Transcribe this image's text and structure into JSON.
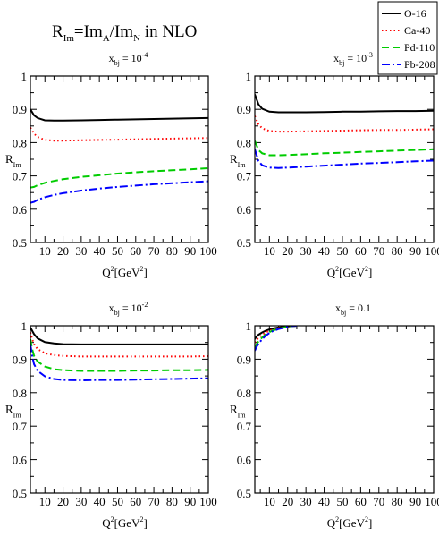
{
  "figure": {
    "title_main": "R",
    "title_main_sub": "Im",
    "title_eq": "=Im",
    "title_A": "A",
    "title_slash": "/Im",
    "title_N": "N",
    "title_tail": " in NLO"
  },
  "legend": {
    "entries": [
      {
        "label": "O-16",
        "color": "#000000",
        "dash": "solid"
      },
      {
        "label": "Ca-40",
        "color": "#ff0000",
        "dash": "dotted"
      },
      {
        "label": "Pd-110",
        "color": "#00cc00",
        "dash": "dashed"
      },
      {
        "label": "Pb-208",
        "color": "#0000ff",
        "dash": "dashdot"
      }
    ]
  },
  "chart_data": [
    {
      "type": "line",
      "panel_title": "x_bj = 10^-4",
      "panel_title_base": "x",
      "panel_title_sub": "bj",
      "panel_title_eq": " = 10",
      "panel_title_sup": "-4",
      "xlabel": "Q²[GeV²]",
      "ylabel": "R_Im",
      "xlim": [
        2,
        100
      ],
      "ylim": [
        0.5,
        1.0
      ],
      "xticks": [
        10,
        20,
        30,
        40,
        50,
        60,
        70,
        80,
        90,
        100
      ],
      "yticks": [
        0.5,
        0.6,
        0.7,
        0.8,
        0.9,
        1.0
      ],
      "x": [
        2,
        4,
        6,
        10,
        15,
        20,
        30,
        40,
        50,
        60,
        70,
        80,
        90,
        100
      ],
      "series": [
        {
          "name": "O-16",
          "values": [
            0.9,
            0.882,
            0.874,
            0.867,
            0.866,
            0.866,
            0.867,
            0.868,
            0.869,
            0.87,
            0.871,
            0.872,
            0.873,
            0.874
          ]
        },
        {
          "name": "Ca-40",
          "values": [
            0.845,
            0.827,
            0.817,
            0.808,
            0.806,
            0.806,
            0.807,
            0.808,
            0.809,
            0.81,
            0.811,
            0.812,
            0.813,
            0.814
          ]
        },
        {
          "name": "Pd-110",
          "values": [
            0.665,
            0.667,
            0.672,
            0.679,
            0.685,
            0.69,
            0.697,
            0.702,
            0.707,
            0.711,
            0.714,
            0.717,
            0.72,
            0.723
          ]
        },
        {
          "name": "Pb-208",
          "values": [
            0.619,
            0.622,
            0.628,
            0.636,
            0.643,
            0.648,
            0.656,
            0.662,
            0.667,
            0.671,
            0.675,
            0.678,
            0.681,
            0.684
          ]
        }
      ]
    },
    {
      "type": "line",
      "panel_title": "x_bj = 10^-3",
      "panel_title_base": "x",
      "panel_title_sub": "bj",
      "panel_title_eq": " = 10",
      "panel_title_sup": "-3",
      "xlabel": "Q²[GeV²]",
      "ylabel": "R_Im",
      "xlim": [
        2,
        100
      ],
      "ylim": [
        0.5,
        1.0
      ],
      "xticks": [
        10,
        20,
        30,
        40,
        50,
        60,
        70,
        80,
        90,
        100
      ],
      "yticks": [
        0.5,
        0.6,
        0.7,
        0.8,
        0.9,
        1.0
      ],
      "x": [
        2,
        4,
        6,
        10,
        15,
        20,
        30,
        40,
        50,
        60,
        70,
        80,
        90,
        100
      ],
      "series": [
        {
          "name": "O-16",
          "values": [
            0.945,
            0.915,
            0.902,
            0.893,
            0.891,
            0.891,
            0.891,
            0.892,
            0.893,
            0.893,
            0.894,
            0.895,
            0.895,
            0.896
          ]
        },
        {
          "name": "Ca-40",
          "values": [
            0.88,
            0.855,
            0.843,
            0.835,
            0.833,
            0.833,
            0.834,
            0.835,
            0.836,
            0.837,
            0.838,
            0.838,
            0.839,
            0.84
          ]
        },
        {
          "name": "Pd-110",
          "values": [
            0.805,
            0.778,
            0.768,
            0.762,
            0.762,
            0.763,
            0.765,
            0.768,
            0.77,
            0.772,
            0.774,
            0.776,
            0.778,
            0.78
          ]
        },
        {
          "name": "Pb-208",
          "values": [
            0.78,
            0.745,
            0.732,
            0.725,
            0.724,
            0.725,
            0.728,
            0.731,
            0.734,
            0.737,
            0.739,
            0.741,
            0.744,
            0.746
          ]
        }
      ]
    },
    {
      "type": "line",
      "panel_title": "x_bj = 10^-2",
      "panel_title_base": "x",
      "panel_title_sub": "bj",
      "panel_title_eq": " = 10",
      "panel_title_sup": "-2",
      "xlabel": "Q²[GeV²]",
      "ylabel": "R_Im",
      "xlim": [
        2,
        100
      ],
      "ylim": [
        0.5,
        1.0
      ],
      "xticks": [
        10,
        20,
        30,
        40,
        50,
        60,
        70,
        80,
        90,
        100
      ],
      "yticks": [
        0.5,
        0.6,
        0.7,
        0.8,
        0.9,
        1.0
      ],
      "x": [
        2,
        3,
        4,
        6,
        10,
        15,
        20,
        30,
        40,
        50,
        60,
        70,
        80,
        90,
        100
      ],
      "series": [
        {
          "name": "O-16",
          "values": [
            0.995,
            0.985,
            0.975,
            0.962,
            0.951,
            0.947,
            0.945,
            0.944,
            0.944,
            0.944,
            0.944,
            0.944,
            0.944,
            0.944,
            0.944
          ]
        },
        {
          "name": "Ca-40",
          "values": [
            0.98,
            0.96,
            0.945,
            0.93,
            0.918,
            0.912,
            0.91,
            0.908,
            0.908,
            0.908,
            0.908,
            0.908,
            0.908,
            0.908,
            0.909
          ]
        },
        {
          "name": "Pd-110",
          "values": [
            0.96,
            0.93,
            0.91,
            0.893,
            0.878,
            0.87,
            0.867,
            0.865,
            0.865,
            0.865,
            0.866,
            0.866,
            0.867,
            0.867,
            0.868
          ]
        },
        {
          "name": "Pb-208",
          "values": [
            0.945,
            0.91,
            0.885,
            0.865,
            0.849,
            0.841,
            0.838,
            0.837,
            0.838,
            0.838,
            0.839,
            0.84,
            0.841,
            0.842,
            0.843
          ]
        }
      ]
    },
    {
      "type": "line",
      "panel_title": "x_bj = 0.1",
      "panel_title_base": "x",
      "panel_title_sub": "bj",
      "panel_title_eq": " = 0.1",
      "panel_title_sup": "",
      "xlabel": "Q²[GeV²]",
      "ylabel": "R_Im",
      "xlim": [
        2,
        100
      ],
      "ylim": [
        0.5,
        1.0
      ],
      "xticks": [
        10,
        20,
        30,
        40,
        50,
        60,
        70,
        80,
        90,
        100
      ],
      "yticks": [
        0.5,
        0.6,
        0.7,
        0.8,
        0.9,
        1.0
      ],
      "x": [
        2,
        3,
        4,
        6,
        8,
        10,
        12,
        15,
        18,
        20,
        22,
        25
      ],
      "series": [
        {
          "name": "O-16",
          "values": [
            0.96,
            0.968,
            0.973,
            0.98,
            0.985,
            0.989,
            0.992,
            0.995,
            0.997,
            0.998,
            0.999,
            1.0
          ]
        },
        {
          "name": "Ca-40",
          "values": [
            0.95,
            0.958,
            0.964,
            0.973,
            0.98,
            0.985,
            0.989,
            0.993,
            0.996,
            0.998,
            0.999,
            1.0
          ]
        },
        {
          "name": "Pd-110",
          "values": [
            0.935,
            0.945,
            0.953,
            0.965,
            0.974,
            0.981,
            0.986,
            0.991,
            0.995,
            0.997,
            0.999,
            1.0
          ]
        },
        {
          "name": "Pb-208",
          "values": [
            0.925,
            0.937,
            0.946,
            0.96,
            0.97,
            0.978,
            0.984,
            0.99,
            0.994,
            0.997,
            0.999,
            1.0
          ]
        }
      ]
    }
  ]
}
